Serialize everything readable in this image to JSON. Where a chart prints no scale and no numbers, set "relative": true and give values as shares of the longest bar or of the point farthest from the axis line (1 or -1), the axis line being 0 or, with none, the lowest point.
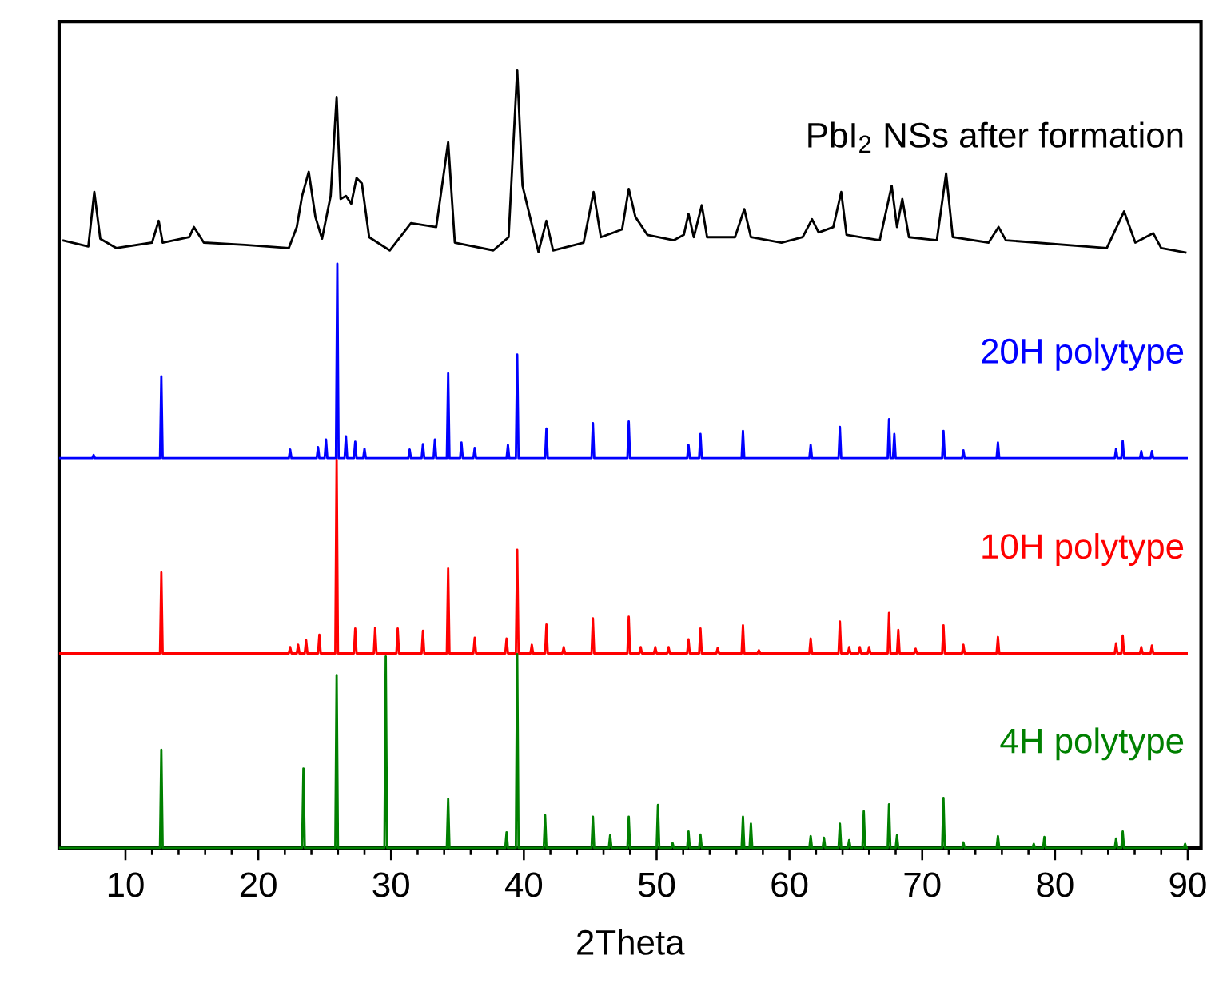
{
  "chart_data": {
    "type": "line",
    "xlabel": "2Theta",
    "xlim": [
      5,
      91
    ],
    "xticks": [
      10,
      20,
      30,
      40,
      50,
      60,
      70,
      80,
      90
    ],
    "relative": true,
    "tick_labels": "x",
    "marker": "none",
    "line_style": "solid",
    "legend": false,
    "grid": false,
    "series": [
      {
        "name": "PbI$_{2}$ NSs after formation",
        "color": "#000000",
        "x": [
          5.25,
          7.2,
          7.65,
          8.1,
          9.3,
          12.0,
          12.5,
          12.8,
          14.8,
          15.15,
          15.9,
          19.0,
          22.3,
          22.9,
          23.3,
          23.8,
          24.3,
          24.8,
          25.45,
          25.9,
          26.2,
          26.6,
          27.0,
          27.4,
          27.8,
          28.35,
          29.9,
          31.5,
          33.4,
          34.3,
          34.8,
          37.7,
          38.85,
          39.5,
          39.9,
          41.1,
          41.7,
          42.2,
          44.5,
          45.25,
          45.8,
          47.4,
          47.9,
          48.4,
          49.3,
          51.3,
          52.05,
          52.4,
          52.8,
          53.4,
          53.8,
          55.9,
          56.6,
          57.1,
          59.4,
          61.0,
          61.7,
          62.2,
          63.3,
          63.9,
          64.3,
          66.8,
          67.7,
          68.1,
          68.5,
          69.0,
          71.1,
          71.8,
          72.3,
          75.0,
          75.75,
          76.3,
          83.9,
          85.2,
          86.05,
          87.4,
          88.0,
          89.9
        ],
        "values": [
          0.781,
          0.773,
          0.843,
          0.783,
          0.771,
          0.778,
          0.806,
          0.778,
          0.785,
          0.798,
          0.778,
          0.775,
          0.771,
          0.798,
          0.838,
          0.869,
          0.811,
          0.783,
          0.838,
          0.965,
          0.834,
          0.838,
          0.828,
          0.861,
          0.854,
          0.785,
          0.768,
          0.803,
          0.798,
          0.907,
          0.778,
          0.768,
          0.785,
          1.0,
          0.851,
          0.766,
          0.806,
          0.768,
          0.778,
          0.843,
          0.785,
          0.795,
          0.847,
          0.811,
          0.788,
          0.781,
          0.788,
          0.815,
          0.785,
          0.826,
          0.785,
          0.785,
          0.821,
          0.785,
          0.778,
          0.785,
          0.808,
          0.791,
          0.798,
          0.843,
          0.788,
          0.781,
          0.851,
          0.798,
          0.834,
          0.785,
          0.781,
          0.867,
          0.785,
          0.778,
          0.798,
          0.781,
          0.771,
          0.818,
          0.778,
          0.79,
          0.771,
          0.765
        ]
      },
      {
        "name": "20H polytype",
        "color": "#0000ff",
        "x": [
          5,
          7.5,
          7.6,
          7.7,
          12.6,
          12.7,
          12.8,
          22.3,
          22.4,
          22.5,
          24.4,
          24.5,
          24.6,
          25.0,
          25.1,
          25.2,
          25.85,
          25.95,
          26.05,
          26.5,
          26.6,
          26.7,
          27.2,
          27.3,
          27.4,
          27.9,
          28.0,
          28.1,
          31.3,
          31.4,
          31.5,
          32.3,
          32.4,
          32.5,
          33.2,
          33.3,
          33.4,
          34.2,
          34.3,
          34.4,
          35.2,
          35.3,
          35.4,
          36.2,
          36.3,
          36.4,
          38.7,
          38.8,
          38.9,
          39.4,
          39.5,
          39.6,
          41.6,
          41.7,
          41.8,
          45.1,
          45.2,
          45.3,
          47.8,
          47.9,
          48.0,
          52.3,
          52.4,
          52.5,
          53.2,
          53.3,
          53.4,
          56.4,
          56.5,
          56.6,
          61.5,
          61.6,
          61.7,
          63.7,
          63.8,
          63.9,
          67.4,
          67.5,
          67.6,
          67.8,
          67.9,
          68.0,
          71.5,
          71.6,
          71.7,
          73.0,
          73.1,
          73.2,
          75.6,
          75.7,
          75.8,
          84.5,
          84.6,
          84.7,
          85.0,
          85.1,
          85.2,
          86.4,
          86.5,
          86.6,
          87.2,
          87.3,
          87.4,
          90
        ],
        "values": [
          0.501,
          0.501,
          0.505,
          0.501,
          0.501,
          0.606,
          0.501,
          0.501,
          0.512,
          0.501,
          0.501,
          0.515,
          0.501,
          0.501,
          0.525,
          0.501,
          0.501,
          0.751,
          0.501,
          0.501,
          0.529,
          0.501,
          0.501,
          0.522,
          0.501,
          0.501,
          0.513,
          0.501,
          0.501,
          0.512,
          0.501,
          0.501,
          0.519,
          0.501,
          0.501,
          0.525,
          0.501,
          0.501,
          0.61,
          0.501,
          0.501,
          0.521,
          0.501,
          0.501,
          0.514,
          0.501,
          0.501,
          0.518,
          0.501,
          0.501,
          0.634,
          0.501,
          0.501,
          0.539,
          0.501,
          0.501,
          0.546,
          0.501,
          0.501,
          0.548,
          0.501,
          0.501,
          0.518,
          0.501,
          0.501,
          0.532,
          0.501,
          0.501,
          0.536,
          0.501,
          0.501,
          0.518,
          0.501,
          0.501,
          0.541,
          0.501,
          0.501,
          0.551,
          0.501,
          0.501,
          0.532,
          0.501,
          0.501,
          0.536,
          0.501,
          0.501,
          0.511,
          0.501,
          0.501,
          0.521,
          0.501,
          0.501,
          0.513,
          0.501,
          0.501,
          0.523,
          0.501,
          0.501,
          0.51,
          0.501,
          0.501,
          0.51,
          0.501,
          0.501
        ]
      },
      {
        "name": "10H polytype",
        "color": "#ff0000",
        "x": [
          5,
          12.6,
          12.7,
          12.8,
          22.3,
          22.4,
          22.5,
          22.9,
          23.0,
          23.1,
          23.5,
          23.6,
          23.7,
          24.5,
          24.6,
          24.7,
          25.8,
          25.9,
          26.0,
          27.2,
          27.3,
          27.4,
          28.7,
          28.8,
          28.9,
          30.4,
          30.5,
          30.6,
          32.3,
          32.4,
          32.5,
          34.2,
          34.3,
          34.4,
          36.2,
          36.3,
          36.4,
          38.6,
          38.7,
          38.8,
          39.4,
          39.5,
          39.6,
          40.5,
          40.6,
          40.7,
          41.6,
          41.7,
          41.8,
          42.9,
          43.0,
          43.1,
          45.1,
          45.2,
          45.3,
          47.8,
          47.9,
          48.0,
          48.7,
          48.8,
          48.9,
          49.8,
          49.9,
          50.0,
          50.8,
          50.9,
          51.0,
          52.3,
          52.4,
          52.5,
          53.2,
          53.3,
          53.4,
          54.5,
          54.6,
          54.7,
          56.4,
          56.5,
          56.6,
          57.6,
          57.7,
          57.8,
          61.5,
          61.6,
          61.7,
          63.7,
          63.8,
          63.9,
          64.4,
          64.5,
          64.6,
          65.2,
          65.3,
          65.4,
          65.9,
          66.0,
          66.1,
          67.4,
          67.5,
          67.6,
          68.1,
          68.2,
          68.3,
          69.4,
          69.5,
          69.6,
          71.5,
          71.6,
          71.7,
          73.0,
          73.1,
          73.2,
          75.6,
          75.7,
          75.8,
          84.5,
          84.6,
          84.7,
          85.0,
          85.1,
          85.2,
          86.4,
          86.5,
          86.6,
          87.2,
          87.3,
          87.4,
          90
        ],
        "values": [
          0.25,
          0.25,
          0.354,
          0.25,
          0.25,
          0.258,
          0.25,
          0.25,
          0.261,
          0.25,
          0.25,
          0.267,
          0.25,
          0.25,
          0.274,
          0.25,
          0.25,
          0.499,
          0.25,
          0.25,
          0.282,
          0.25,
          0.25,
          0.283,
          0.25,
          0.25,
          0.282,
          0.25,
          0.25,
          0.279,
          0.25,
          0.25,
          0.359,
          0.25,
          0.25,
          0.27,
          0.25,
          0.25,
          0.269,
          0.25,
          0.25,
          0.383,
          0.25,
          0.25,
          0.261,
          0.25,
          0.25,
          0.287,
          0.25,
          0.25,
          0.258,
          0.25,
          0.25,
          0.295,
          0.25,
          0.25,
          0.297,
          0.25,
          0.25,
          0.258,
          0.25,
          0.25,
          0.258,
          0.25,
          0.25,
          0.258,
          0.25,
          0.25,
          0.268,
          0.25,
          0.25,
          0.282,
          0.25,
          0.25,
          0.257,
          0.25,
          0.25,
          0.286,
          0.25,
          0.25,
          0.254,
          0.25,
          0.25,
          0.269,
          0.25,
          0.25,
          0.291,
          0.25,
          0.25,
          0.258,
          0.25,
          0.25,
          0.258,
          0.25,
          0.25,
          0.258,
          0.25,
          0.25,
          0.302,
          0.25,
          0.25,
          0.28,
          0.25,
          0.25,
          0.256,
          0.25,
          0.25,
          0.286,
          0.25,
          0.25,
          0.261,
          0.25,
          0.25,
          0.271,
          0.25,
          0.25,
          0.263,
          0.25,
          0.25,
          0.273,
          0.25,
          0.25,
          0.258,
          0.25,
          0.25,
          0.26,
          0.25,
          0.25
        ]
      },
      {
        "name": "4H polytype",
        "color": "#008000",
        "x": [
          5,
          12.6,
          12.7,
          12.8,
          23.3,
          23.4,
          23.5,
          25.8,
          25.9,
          26.0,
          29.5,
          29.6,
          29.7,
          34.2,
          34.3,
          34.4,
          38.6,
          38.7,
          38.8,
          39.4,
          39.5,
          39.6,
          41.5,
          41.6,
          41.7,
          45.1,
          45.2,
          45.3,
          46.4,
          46.5,
          46.6,
          47.8,
          47.9,
          48.0,
          50.0,
          50.1,
          50.2,
          51.1,
          51.2,
          51.3,
          52.3,
          52.4,
          52.5,
          53.2,
          53.3,
          53.4,
          56.4,
          56.5,
          56.6,
          57.0,
          57.1,
          57.2,
          61.5,
          61.6,
          61.7,
          62.5,
          62.6,
          62.7,
          63.7,
          63.8,
          63.9,
          64.4,
          64.5,
          64.6,
          65.5,
          65.6,
          65.7,
          67.4,
          67.5,
          67.6,
          68.0,
          68.1,
          68.2,
          71.5,
          71.6,
          71.7,
          73.0,
          73.1,
          73.2,
          75.6,
          75.7,
          75.8,
          78.3,
          78.4,
          78.5,
          79.1,
          79.2,
          79.3,
          84.5,
          84.6,
          84.7,
          85.0,
          85.1,
          85.2,
          89.7,
          89.8,
          89.9,
          90
        ],
        "values": [
          0,
          0,
          0.126,
          0,
          0,
          0.102,
          0,
          0,
          0.222,
          0,
          0,
          0.246,
          0,
          0,
          0.063,
          0,
          0,
          0.02,
          0,
          0,
          0.249,
          0,
          0,
          0.042,
          0,
          0,
          0.04,
          0,
          0,
          0.016,
          0,
          0,
          0.04,
          0,
          0,
          0.055,
          0,
          0,
          0.006,
          0,
          0,
          0.021,
          0,
          0,
          0.017,
          0,
          0,
          0.04,
          0,
          0,
          0.031,
          0,
          0,
          0.015,
          0,
          0,
          0.013,
          0,
          0,
          0.031,
          0,
          0,
          0.01,
          0,
          0,
          0.047,
          0,
          0,
          0.056,
          0,
          0,
          0.016,
          0,
          0,
          0.064,
          0,
          0,
          0.007,
          0,
          0,
          0.015,
          0,
          0,
          0.005,
          0,
          0,
          0.014,
          0,
          0,
          0.012,
          0,
          0,
          0.021,
          0,
          0,
          0.005,
          0,
          0
        ]
      }
    ]
  }
}
